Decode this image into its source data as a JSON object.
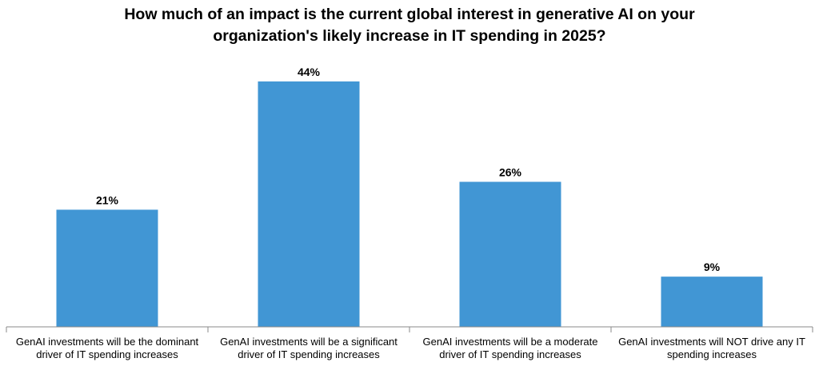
{
  "chart_data": {
    "type": "bar",
    "title": "How much of an impact is the current global interest in generative AI on your organization's likely increase in IT spending in 2025?",
    "title_lines": [
      "How much of an impact is the current global interest in generative AI on your",
      "organization's likely increase in IT spending in 2025?"
    ],
    "categories": [
      "GenAI investments will be the dominant driver of IT spending increases",
      "GenAI investments will be a significant driver of IT spending increases",
      "GenAI investments will be a moderate driver of IT spending increases",
      "GenAI investments will NOT drive any IT spending increases"
    ],
    "category_lines": [
      [
        "GenAI investments will be the dominant",
        "driver of IT spending increases"
      ],
      [
        "GenAI investments will be a significant",
        "driver of IT spending increases"
      ],
      [
        "GenAI investments will be a moderate",
        "driver of IT spending increases"
      ],
      [
        "GenAI investments will NOT drive any IT",
        "spending increases"
      ]
    ],
    "values": [
      21,
      44,
      26,
      9
    ],
    "value_labels": [
      "21%",
      "44%",
      "26%",
      "9%"
    ],
    "unit": "%",
    "xlabel": "",
    "ylabel": "",
    "ylim": [
      0,
      50
    ],
    "grid": false,
    "legend": "none",
    "bar_color": "#4196d4"
  }
}
